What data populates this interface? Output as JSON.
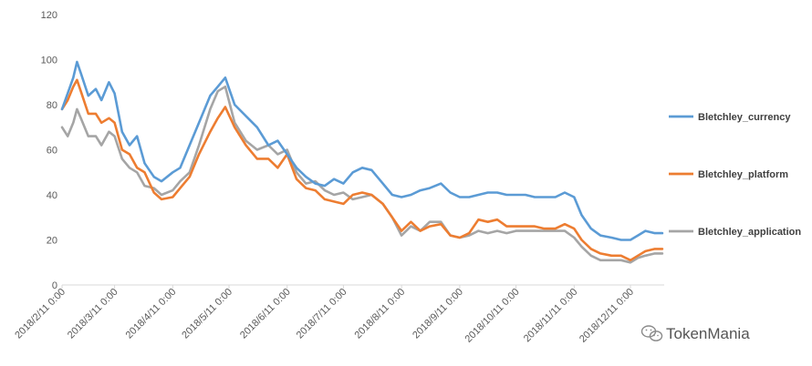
{
  "chart_data": {
    "type": "line",
    "title": "",
    "xlabel": "",
    "ylabel": "",
    "ylim": [
      0,
      120
    ],
    "yticks": [
      0,
      20,
      40,
      60,
      80,
      100,
      120
    ],
    "x_tick_labels": [
      "2018/2/11 0:00",
      "2018/3/11 0:00",
      "2018/4/11 0:00",
      "2018/5/11 0:00",
      "2018/6/11 0:00",
      "2018/7/11 0:00",
      "2018/8/11 0:00",
      "2018/9/11 0:00",
      "2018/10/11 0:00",
      "2018/11/11 0:00",
      "2018/12/11 0:00"
    ],
    "grid": false,
    "legend_position": "right",
    "series": [
      {
        "name": "Bletchley_currency",
        "color": "#5B9BD5",
        "points": [
          [
            "2018/2/11",
            78
          ],
          [
            "2018/2/14",
            85
          ],
          [
            "2018/2/17",
            92
          ],
          [
            "2018/2/19",
            99
          ],
          [
            "2018/2/21",
            94
          ],
          [
            "2018/2/25",
            84
          ],
          [
            "2018/3/1",
            87
          ],
          [
            "2018/3/4",
            82
          ],
          [
            "2018/3/8",
            90
          ],
          [
            "2018/3/11",
            85
          ],
          [
            "2018/3/15",
            68
          ],
          [
            "2018/3/19",
            62
          ],
          [
            "2018/3/23",
            66
          ],
          [
            "2018/3/27",
            54
          ],
          [
            "2018/4/1",
            48
          ],
          [
            "2018/4/5",
            46
          ],
          [
            "2018/4/11",
            50
          ],
          [
            "2018/4/15",
            52
          ],
          [
            "2018/4/20",
            62
          ],
          [
            "2018/4/25",
            72
          ],
          [
            "2018/5/1",
            84
          ],
          [
            "2018/5/5",
            88
          ],
          [
            "2018/5/9",
            92
          ],
          [
            "2018/5/14",
            80
          ],
          [
            "2018/5/20",
            75
          ],
          [
            "2018/5/26",
            70
          ],
          [
            "2018/6/1",
            62
          ],
          [
            "2018/6/6",
            64
          ],
          [
            "2018/6/11",
            58
          ],
          [
            "2018/6/16",
            52
          ],
          [
            "2018/6/21",
            48
          ],
          [
            "2018/6/26",
            45
          ],
          [
            "2018/7/1",
            44
          ],
          [
            "2018/7/6",
            47
          ],
          [
            "2018/7/11",
            45
          ],
          [
            "2018/7/16",
            50
          ],
          [
            "2018/7/21",
            52
          ],
          [
            "2018/7/26",
            51
          ],
          [
            "2018/8/1",
            45
          ],
          [
            "2018/8/6",
            40
          ],
          [
            "2018/8/11",
            39
          ],
          [
            "2018/8/16",
            40
          ],
          [
            "2018/8/21",
            42
          ],
          [
            "2018/8/26",
            43
          ],
          [
            "2018/9/1",
            45
          ],
          [
            "2018/9/6",
            41
          ],
          [
            "2018/9/11",
            39
          ],
          [
            "2018/9/16",
            39
          ],
          [
            "2018/9/21",
            40
          ],
          [
            "2018/9/26",
            41
          ],
          [
            "2018/10/1",
            41
          ],
          [
            "2018/10/6",
            40
          ],
          [
            "2018/10/11",
            40
          ],
          [
            "2018/10/16",
            40
          ],
          [
            "2018/10/21",
            39
          ],
          [
            "2018/10/26",
            39
          ],
          [
            "2018/11/1",
            39
          ],
          [
            "2018/11/6",
            41
          ],
          [
            "2018/11/11",
            39
          ],
          [
            "2018/11/15",
            31
          ],
          [
            "2018/11/20",
            25
          ],
          [
            "2018/11/25",
            22
          ],
          [
            "2018/12/1",
            21
          ],
          [
            "2018/12/6",
            20
          ],
          [
            "2018/12/11",
            20
          ],
          [
            "2018/12/15",
            22
          ],
          [
            "2018/12/19",
            24
          ],
          [
            "2018/12/24",
            23
          ],
          [
            "2018/12/28",
            23
          ]
        ]
      },
      {
        "name": "Bletchley_platform",
        "color": "#ED7D31",
        "points": [
          [
            "2018/2/11",
            78
          ],
          [
            "2018/2/14",
            82
          ],
          [
            "2018/2/17",
            88
          ],
          [
            "2018/2/19",
            91
          ],
          [
            "2018/2/21",
            86
          ],
          [
            "2018/2/25",
            76
          ],
          [
            "2018/3/1",
            76
          ],
          [
            "2018/3/4",
            72
          ],
          [
            "2018/3/8",
            74
          ],
          [
            "2018/3/11",
            72
          ],
          [
            "2018/3/15",
            60
          ],
          [
            "2018/3/19",
            58
          ],
          [
            "2018/3/23",
            52
          ],
          [
            "2018/3/27",
            50
          ],
          [
            "2018/4/1",
            41
          ],
          [
            "2018/4/5",
            38
          ],
          [
            "2018/4/11",
            39
          ],
          [
            "2018/4/15",
            43
          ],
          [
            "2018/4/20",
            48
          ],
          [
            "2018/4/25",
            58
          ],
          [
            "2018/5/1",
            68
          ],
          [
            "2018/5/5",
            74
          ],
          [
            "2018/5/9",
            79
          ],
          [
            "2018/5/14",
            70
          ],
          [
            "2018/5/20",
            62
          ],
          [
            "2018/5/26",
            56
          ],
          [
            "2018/6/1",
            56
          ],
          [
            "2018/6/6",
            52
          ],
          [
            "2018/6/11",
            58
          ],
          [
            "2018/6/16",
            47
          ],
          [
            "2018/6/21",
            43
          ],
          [
            "2018/6/26",
            42
          ],
          [
            "2018/7/1",
            38
          ],
          [
            "2018/7/6",
            37
          ],
          [
            "2018/7/11",
            36
          ],
          [
            "2018/7/16",
            40
          ],
          [
            "2018/7/21",
            41
          ],
          [
            "2018/7/26",
            40
          ],
          [
            "2018/8/1",
            36
          ],
          [
            "2018/8/6",
            30
          ],
          [
            "2018/8/11",
            24
          ],
          [
            "2018/8/16",
            28
          ],
          [
            "2018/8/21",
            24
          ],
          [
            "2018/8/26",
            26
          ],
          [
            "2018/9/1",
            27
          ],
          [
            "2018/9/6",
            22
          ],
          [
            "2018/9/11",
            21
          ],
          [
            "2018/9/16",
            23
          ],
          [
            "2018/9/21",
            29
          ],
          [
            "2018/9/26",
            28
          ],
          [
            "2018/10/1",
            29
          ],
          [
            "2018/10/6",
            26
          ],
          [
            "2018/10/11",
            26
          ],
          [
            "2018/10/16",
            26
          ],
          [
            "2018/10/21",
            26
          ],
          [
            "2018/10/26",
            25
          ],
          [
            "2018/11/1",
            25
          ],
          [
            "2018/11/6",
            27
          ],
          [
            "2018/11/11",
            25
          ],
          [
            "2018/11/15",
            20
          ],
          [
            "2018/11/20",
            16
          ],
          [
            "2018/11/25",
            14
          ],
          [
            "2018/12/1",
            13
          ],
          [
            "2018/12/6",
            13
          ],
          [
            "2018/12/11",
            11
          ],
          [
            "2018/12/15",
            13
          ],
          [
            "2018/12/19",
            15
          ],
          [
            "2018/12/24",
            16
          ],
          [
            "2018/12/28",
            16
          ]
        ]
      },
      {
        "name": "Bletchley_application",
        "color": "#A5A5A5",
        "points": [
          [
            "2018/2/11",
            70
          ],
          [
            "2018/2/14",
            66
          ],
          [
            "2018/2/17",
            72
          ],
          [
            "2018/2/19",
            78
          ],
          [
            "2018/2/21",
            74
          ],
          [
            "2018/2/25",
            66
          ],
          [
            "2018/3/1",
            66
          ],
          [
            "2018/3/4",
            62
          ],
          [
            "2018/3/8",
            68
          ],
          [
            "2018/3/11",
            66
          ],
          [
            "2018/3/15",
            56
          ],
          [
            "2018/3/19",
            52
          ],
          [
            "2018/3/23",
            50
          ],
          [
            "2018/3/27",
            44
          ],
          [
            "2018/4/1",
            43
          ],
          [
            "2018/4/5",
            40
          ],
          [
            "2018/4/11",
            42
          ],
          [
            "2018/4/15",
            46
          ],
          [
            "2018/4/20",
            50
          ],
          [
            "2018/4/25",
            62
          ],
          [
            "2018/5/1",
            78
          ],
          [
            "2018/5/5",
            86
          ],
          [
            "2018/5/9",
            88
          ],
          [
            "2018/5/14",
            72
          ],
          [
            "2018/5/20",
            64
          ],
          [
            "2018/5/26",
            60
          ],
          [
            "2018/6/1",
            62
          ],
          [
            "2018/6/6",
            58
          ],
          [
            "2018/6/11",
            60
          ],
          [
            "2018/6/16",
            50
          ],
          [
            "2018/6/21",
            45
          ],
          [
            "2018/6/26",
            46
          ],
          [
            "2018/7/1",
            42
          ],
          [
            "2018/7/6",
            40
          ],
          [
            "2018/7/11",
            41
          ],
          [
            "2018/7/16",
            38
          ],
          [
            "2018/7/21",
            39
          ],
          [
            "2018/7/26",
            40
          ],
          [
            "2018/8/1",
            36
          ],
          [
            "2018/8/6",
            30
          ],
          [
            "2018/8/11",
            22
          ],
          [
            "2018/8/16",
            26
          ],
          [
            "2018/8/21",
            24
          ],
          [
            "2018/8/26",
            28
          ],
          [
            "2018/9/1",
            28
          ],
          [
            "2018/9/6",
            22
          ],
          [
            "2018/9/11",
            21
          ],
          [
            "2018/9/16",
            22
          ],
          [
            "2018/9/21",
            24
          ],
          [
            "2018/9/26",
            23
          ],
          [
            "2018/10/1",
            24
          ],
          [
            "2018/10/6",
            23
          ],
          [
            "2018/10/11",
            24
          ],
          [
            "2018/10/16",
            24
          ],
          [
            "2018/10/21",
            24
          ],
          [
            "2018/10/26",
            24
          ],
          [
            "2018/11/1",
            24
          ],
          [
            "2018/11/6",
            24
          ],
          [
            "2018/11/11",
            21
          ],
          [
            "2018/11/15",
            17
          ],
          [
            "2018/11/20",
            13
          ],
          [
            "2018/11/25",
            11
          ],
          [
            "2018/12/1",
            11
          ],
          [
            "2018/12/6",
            11
          ],
          [
            "2018/12/11",
            10
          ],
          [
            "2018/12/15",
            12
          ],
          [
            "2018/12/19",
            13
          ],
          [
            "2018/12/24",
            14
          ],
          [
            "2018/12/28",
            14
          ]
        ]
      }
    ]
  },
  "watermark": {
    "text": "TokenMania",
    "icon": "wechat-icon"
  }
}
